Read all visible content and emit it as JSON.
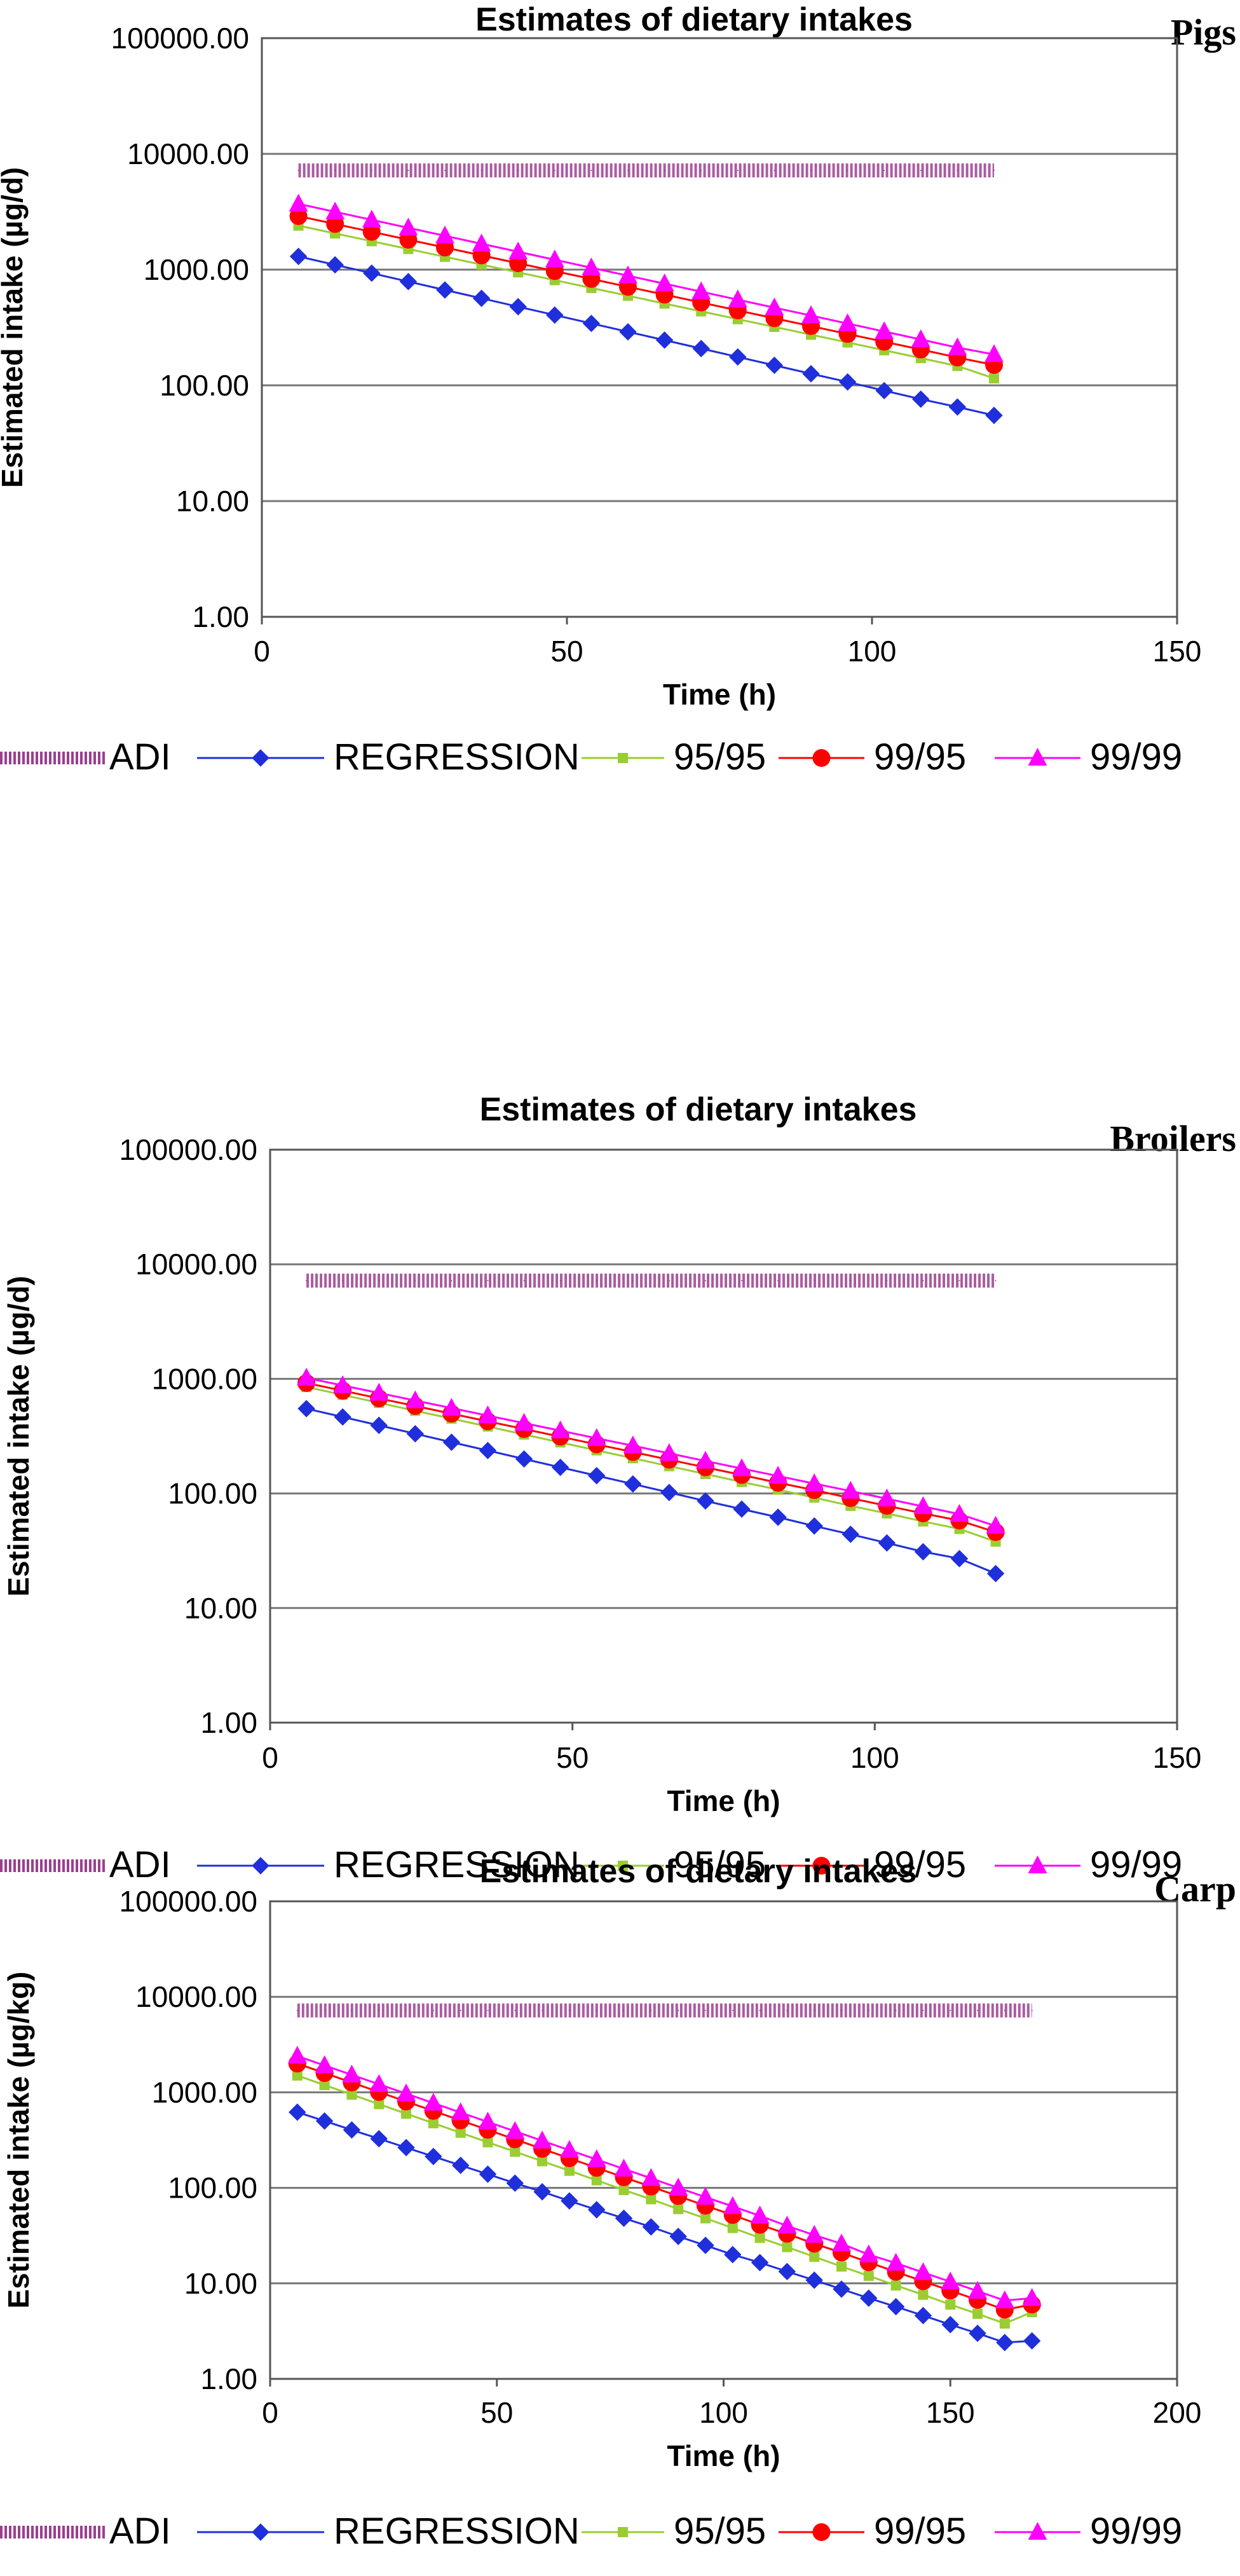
{
  "chart_data": [
    {
      "type": "line",
      "title": "Estimates of dietary intakes",
      "subtitle": "Pigs",
      "xlabel": "Time (h)",
      "ylabel": "Estimated intake (µg/d)",
      "y_scale": "log",
      "xlim": [
        0,
        150
      ],
      "ylim": [
        1,
        100000
      ],
      "x_ticks": [
        "0",
        "50",
        "100",
        "150"
      ],
      "y_ticks": [
        "1.00",
        "10.00",
        "100.00",
        "1000.00",
        "10000.00",
        "100000.00"
      ],
      "grid": "horizontal",
      "legend_position": "bottom",
      "x": [
        6,
        12,
        18,
        24,
        30,
        36,
        42,
        48,
        54,
        60,
        66,
        72,
        78,
        84,
        90,
        96,
        102,
        108,
        114,
        120
      ],
      "series": [
        {
          "name": "ADI",
          "color": "#9b3f8f",
          "marker": "band",
          "values": [
            7200,
            7200,
            7200,
            7200,
            7200,
            7200,
            7200,
            7200,
            7200,
            7200,
            7200,
            7200,
            7200,
            7200,
            7200,
            7200,
            7200,
            7200,
            7200,
            7200
          ]
        },
        {
          "name": "REGRESSION",
          "color": "#1f2fdc",
          "marker": "diamond",
          "values": [
            1300,
            1100,
            932,
            788,
            667,
            565,
            478,
            405,
            343,
            290,
            246,
            208,
            176,
            149,
            126,
            107,
            90,
            76,
            65,
            55
          ]
        },
        {
          "name": "95/95",
          "color": "#9acd32",
          "marker": "square",
          "values": [
            2400,
            2055,
            1760,
            1507,
            1291,
            1105,
            947,
            811,
            694,
            595,
            509,
            436,
            373,
            320,
            274,
            235,
            201,
            172,
            147,
            115
          ]
        },
        {
          "name": "99/95",
          "color": "#ff0000",
          "marker": "circle",
          "values": [
            2900,
            2480,
            2121,
            1814,
            1552,
            1327,
            1135,
            971,
            831,
            710,
            608,
            520,
            444,
            380,
            325,
            278,
            238,
            204,
            174,
            150
          ]
        },
        {
          "name": "99/99",
          "color": "#ff00ff",
          "marker": "triangle",
          "values": [
            3700,
            3156,
            2693,
            2297,
            1960,
            1672,
            1427,
            1217,
            1039,
            886,
            756,
            645,
            550,
            469,
            401,
            342,
            292,
            249,
            212,
            185
          ]
        }
      ]
    },
    {
      "type": "line",
      "title": "Estimates of dietary intakes",
      "subtitle": "Broilers",
      "xlabel": "Time (h)",
      "ylabel": "Estimated intake (µg/d)",
      "y_scale": "log",
      "xlim": [
        0,
        150
      ],
      "ylim": [
        1,
        100000
      ],
      "x_ticks": [
        "0",
        "50",
        "100",
        "150"
      ],
      "y_ticks": [
        "1.00",
        "10.00",
        "100.00",
        "1000.00",
        "10000.00",
        "100000.00"
      ],
      "grid": "horizontal",
      "legend_position": "bottom",
      "x": [
        6,
        12,
        18,
        24,
        30,
        36,
        42,
        48,
        54,
        60,
        66,
        72,
        78,
        84,
        90,
        96,
        102,
        108,
        114,
        120
      ],
      "series": [
        {
          "name": "ADI",
          "color": "#9b3f8f",
          "marker": "band",
          "values": [
            7200,
            7200,
            7200,
            7200,
            7200,
            7200,
            7200,
            7200,
            7200,
            7200,
            7200,
            7200,
            7200,
            7200,
            7200,
            7200,
            7200,
            7200,
            7200,
            7200
          ]
        },
        {
          "name": "REGRESSION",
          "color": "#1f2fdc",
          "marker": "diamond",
          "values": [
            550,
            465,
            393,
            332,
            280,
            237,
            200,
            169,
            143,
            121,
            102,
            86,
            73,
            62,
            52,
            44,
            37,
            31,
            27,
            20
          ]
        },
        {
          "name": "95/95",
          "color": "#9acd32",
          "marker": "square",
          "values": [
            850,
            725,
            618,
            527,
            450,
            384,
            327,
            279,
            238,
            203,
            173,
            148,
            126,
            108,
            92,
            78,
            67,
            57,
            49,
            38
          ]
        },
        {
          "name": "99/95",
          "color": "#ff0000",
          "marker": "circle",
          "values": [
            920,
            789,
            676,
            580,
            497,
            426,
            365,
            313,
            268,
            230,
            197,
            169,
            145,
            124,
            107,
            91,
            78,
            67,
            58,
            46
          ]
        },
        {
          "name": "99/99",
          "color": "#ff00ff",
          "marker": "triangle",
          "values": [
            1020,
            876,
            753,
            647,
            556,
            478,
            411,
            353,
            303,
            261,
            224,
            192,
            165,
            142,
            122,
            105,
            90,
            77,
            66,
            52
          ]
        }
      ]
    },
    {
      "type": "line",
      "title": "Estimates of dietary intakes",
      "subtitle": "Carp",
      "xlabel": "Time (h)",
      "ylabel": "Estimated intake (µg/kg)",
      "y_scale": "log",
      "xlim": [
        0,
        200
      ],
      "ylim": [
        1,
        100000
      ],
      "x_ticks": [
        "0",
        "50",
        "100",
        "150",
        "200"
      ],
      "y_ticks": [
        "1.00",
        "10.00",
        "100.00",
        "1000.00",
        "10000.00",
        "100000.00"
      ],
      "grid": "horizontal",
      "legend_position": "bottom",
      "x": [
        6,
        12,
        18,
        24,
        30,
        36,
        42,
        48,
        54,
        60,
        66,
        72,
        78,
        84,
        90,
        96,
        102,
        108,
        114,
        120,
        126,
        132,
        138,
        144,
        150,
        156,
        162,
        168
      ],
      "series": [
        {
          "name": "ADI",
          "color": "#9b3f8f",
          "marker": "band",
          "values": [
            7200,
            7200,
            7200,
            7200,
            7200,
            7200,
            7200,
            7200,
            7200,
            7200,
            7200,
            7200,
            7200,
            7200,
            7200,
            7200,
            7200,
            7200,
            7200,
            7200,
            7200,
            7200,
            7200,
            7200,
            7200,
            7200,
            7200,
            7200
          ]
        },
        {
          "name": "REGRESSION",
          "color": "#1f2fdc",
          "marker": "diamond",
          "values": [
            620,
            501,
            404,
            327,
            264,
            213,
            172,
            139,
            112,
            91,
            73,
            59,
            48,
            39,
            31,
            25,
            20,
            16.5,
            13.3,
            10.8,
            8.7,
            7.0,
            5.7,
            4.6,
            3.7,
            3.0,
            2.4,
            2.5
          ]
        },
        {
          "name": "95/95",
          "color": "#9acd32",
          "marker": "square",
          "values": [
            1500,
            1192,
            947,
            753,
            598,
            475,
            378,
            300,
            239,
            190,
            151,
            120,
            95,
            76,
            60,
            48,
            38,
            30,
            24,
            19,
            15,
            12,
            9.5,
            7.6,
            6.0,
            4.8,
            3.8,
            5.0
          ]
        },
        {
          "name": "99/95",
          "color": "#ff0000",
          "marker": "circle",
          "values": [
            2000,
            1592,
            1267,
            1008,
            802,
            639,
            508,
            405,
            322,
            256,
            204,
            162,
            129,
            103,
            82,
            65,
            52,
            41,
            33,
            26,
            21,
            16.6,
            13.2,
            10.5,
            8.4,
            6.7,
            5.3,
            6.0
          ]
        },
        {
          "name": "99/99",
          "color": "#ff00ff",
          "marker": "triangle",
          "values": [
            2400,
            1913,
            1525,
            1215,
            969,
            772,
            615,
            490,
            391,
            311,
            248,
            198,
            158,
            126,
            100,
            80,
            64,
            51,
            40,
            32,
            26,
            20,
            16.3,
            13,
            10.4,
            8.3,
            6.6,
            7.0
          ]
        }
      ]
    }
  ]
}
